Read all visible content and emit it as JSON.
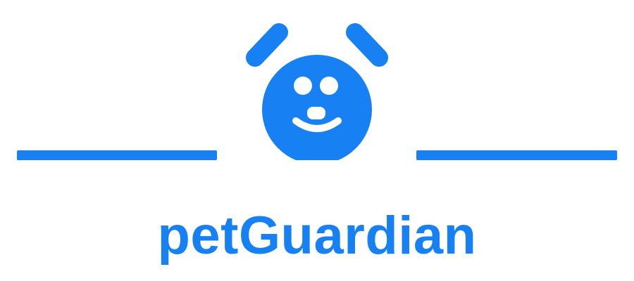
{
  "brand": {
    "name": "petGuardian",
    "color": "#1780F2",
    "background": "#FFFFFF"
  },
  "icons": {
    "mark": "dog-face-icon",
    "left_ear": "left-ear-icon",
    "right_ear": "right-ear-icon",
    "left_eye": "left-eye-icon",
    "right_eye": "right-eye-icon",
    "nose": "nose-icon",
    "mouth": "mouth-smile-icon"
  }
}
